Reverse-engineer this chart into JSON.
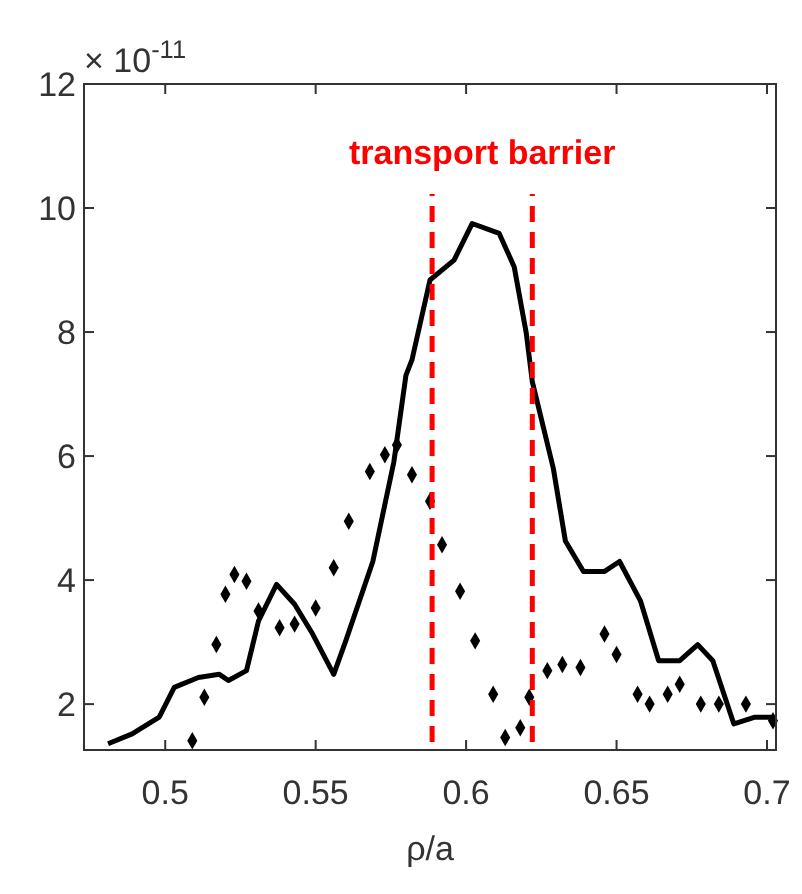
{
  "chart_data": {
    "type": "line",
    "xlabel": "ρ/a",
    "xlim": [
      0.473,
      0.703
    ],
    "ylim": [
      1.26,
      12
    ],
    "xticks": [
      0.5,
      0.55,
      0.6,
      0.65,
      0.7
    ],
    "yticks": [
      2,
      4,
      6,
      8,
      10,
      12
    ],
    "grid": false,
    "series": [
      {
        "type": "line",
        "color": "#000000",
        "line_style": "solid",
        "marker": "none",
        "x": [
          0.481,
          0.489,
          0.498,
          0.503,
          0.511,
          0.518,
          0.521,
          0.527,
          0.531,
          0.537,
          0.543,
          0.549,
          0.556,
          0.56,
          0.569,
          0.576,
          0.58,
          0.582,
          0.588,
          0.596,
          0.602,
          0.611,
          0.616,
          0.62,
          0.622,
          0.629,
          0.633,
          0.639,
          0.646,
          0.651,
          0.658,
          0.664,
          0.671,
          0.677,
          0.682,
          0.689,
          0.696,
          0.702
        ],
        "values": [
          1.36,
          1.52,
          1.79,
          2.27,
          2.43,
          2.48,
          2.38,
          2.54,
          3.34,
          3.93,
          3.61,
          3.13,
          2.48,
          3.02,
          4.3,
          5.91,
          7.3,
          7.55,
          8.84,
          9.16,
          9.75,
          9.59,
          9.05,
          7.98,
          7.2,
          5.8,
          4.63,
          4.14,
          4.14,
          4.3,
          3.66,
          2.7,
          2.7,
          2.96,
          2.7,
          1.68,
          1.79,
          1.79
        ]
      },
      {
        "type": "scatter",
        "color": "#000000",
        "marker": "diamond",
        "x": [
          0.509,
          0.513,
          0.517,
          0.52,
          0.523,
          0.527,
          0.531,
          0.538,
          0.543,
          0.55,
          0.556,
          0.561,
          0.568,
          0.573,
          0.577,
          0.582,
          0.588,
          0.592,
          0.598,
          0.603,
          0.609,
          0.613,
          0.618,
          0.621,
          0.627,
          0.632,
          0.638,
          0.646,
          0.65,
          0.657,
          0.661,
          0.667,
          0.671,
          0.678,
          0.684,
          0.693,
          0.702
        ],
        "values": [
          1.41,
          2.11,
          2.96,
          3.77,
          4.09,
          3.98,
          3.5,
          3.23,
          3.29,
          3.55,
          4.2,
          4.95,
          5.75,
          6.02,
          6.18,
          5.7,
          5.27,
          4.57,
          3.82,
          3.02,
          2.16,
          1.46,
          1.62,
          2.11,
          2.54,
          2.64,
          2.59,
          3.13,
          2.8,
          2.16,
          2.0,
          2.16,
          2.32,
          2.0,
          2.0,
          2.0,
          1.73
        ]
      }
    ],
    "ref_lines": [
      {
        "axis": "x",
        "value": 0.5887,
        "color": "#ff0000",
        "line_style": "dashed"
      },
      {
        "axis": "x",
        "value": 0.622,
        "color": "#ff0000",
        "line_style": "dashed"
      }
    ],
    "annotations": [
      "× 10$^{-11}$",
      "transport barrier"
    ]
  }
}
